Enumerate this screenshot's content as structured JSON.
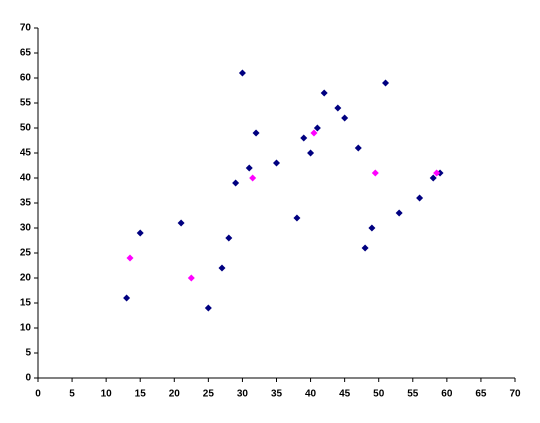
{
  "chart_data": {
    "type": "scatter",
    "series": [
      {
        "color": "#000080",
        "x": [
          13,
          15,
          21,
          25,
          27,
          28,
          29,
          30,
          31,
          32,
          35,
          38,
          39,
          40,
          41,
          42,
          44,
          45,
          47,
          48,
          49,
          51,
          53,
          56,
          58,
          59
        ],
        "values": [
          16,
          29,
          31,
          14,
          22,
          28,
          39,
          61,
          42,
          49,
          43,
          32,
          48,
          45,
          50,
          57,
          54,
          52,
          46,
          26,
          30,
          59,
          33,
          36,
          40,
          41
        ]
      },
      {
        "color": "#ff00ff",
        "x": [
          13.5,
          22.5,
          31.5,
          40.5,
          49.5,
          58.5
        ],
        "values": [
          24,
          20,
          40,
          49,
          41,
          41
        ]
      }
    ],
    "xlim": [
      0,
      70
    ],
    "xticks": [
      0,
      5,
      10,
      15,
      20,
      25,
      30,
      35,
      40,
      45,
      50,
      55,
      60,
      65,
      70
    ],
    "ylim": [
      0,
      70
    ],
    "yticks": [
      0,
      5,
      10,
      15,
      20,
      25,
      30,
      35,
      40,
      45,
      50,
      55,
      60,
      65,
      70
    ],
    "grid": false
  }
}
